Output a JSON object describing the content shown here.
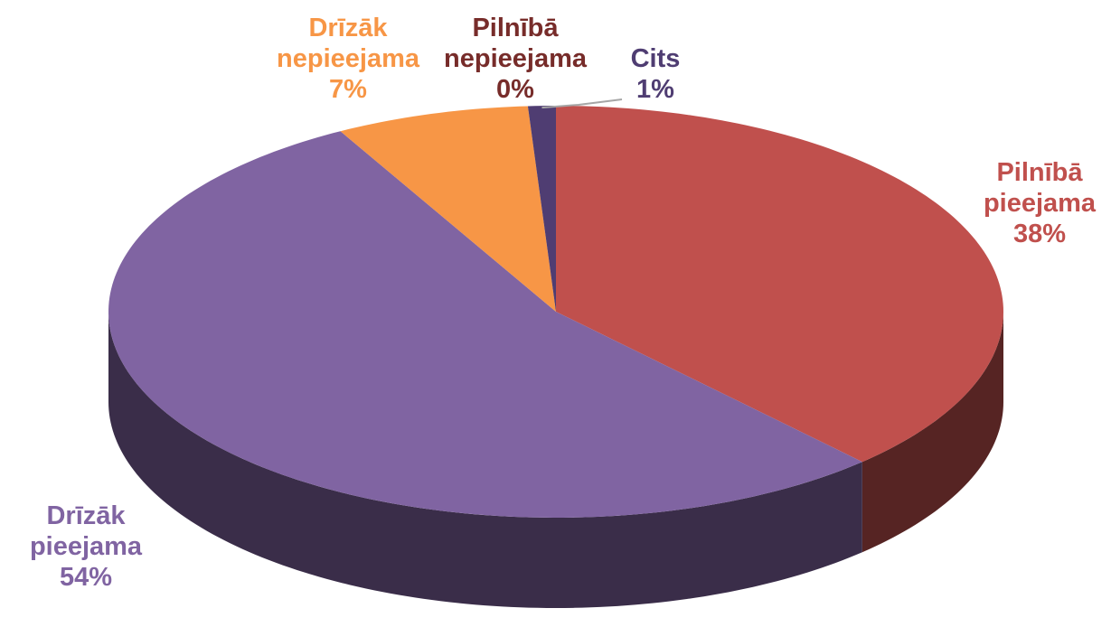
{
  "chart_data": {
    "type": "pie",
    "categories": [
      "Pilnībā pieejama",
      "Drīzāk pieejama",
      "Drīzāk nepieejama",
      "Pilnībā nepieejama",
      "Cits"
    ],
    "values": [
      38,
      54,
      7,
      0,
      1
    ],
    "value_labels": [
      "38%",
      "54%",
      "7%",
      "0%",
      "1%"
    ],
    "colors": [
      "#c0504d",
      "#8064a2",
      "#f79646",
      "#772c2a",
      "#4f3d72"
    ]
  }
}
